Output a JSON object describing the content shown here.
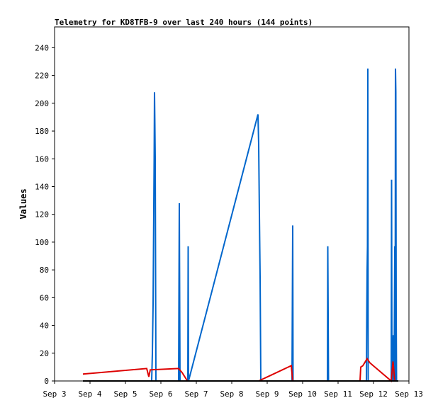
{
  "chart_data": {
    "type": "line",
    "title": "Telemetry for KD8TFB-9 over last 240 hours (144 points)",
    "xlabel": "",
    "ylabel": "Values",
    "x_ticks": [
      "Sep 3",
      "Sep 4",
      "Sep 5",
      "Sep 6",
      "Sep 7",
      "Sep 8",
      "Sep 9",
      "Sep 10",
      "Sep 11",
      "Sep 12",
      "Sep 13"
    ],
    "y_ticks": [
      "0",
      "20",
      "40",
      "60",
      "80",
      "100",
      "120",
      "140",
      "160",
      "180",
      "200",
      "220",
      "240"
    ],
    "xlim": [
      0,
      10
    ],
    "ylim": [
      0,
      255
    ],
    "grid": false,
    "legend": "none",
    "series": [
      {
        "color": "#0066cc",
        "points": [
          [
            0.8,
            0
          ],
          [
            5.74,
            0
          ],
          [
            2.74,
            0
          ],
          [
            2.76,
            20
          ],
          [
            2.78,
            55
          ],
          [
            2.79,
            90
          ],
          [
            2.8,
            125
          ],
          [
            2.81,
            160
          ],
          [
            2.82,
            208
          ],
          [
            2.83,
            185
          ],
          [
            2.84,
            160
          ],
          [
            2.85,
            80
          ],
          [
            2.86,
            0
          ],
          [
            3.5,
            0
          ],
          [
            3.51,
            65
          ],
          [
            3.52,
            128
          ],
          [
            3.53,
            60
          ],
          [
            3.54,
            0
          ],
          [
            3.76,
            0
          ],
          [
            3.77,
            97
          ],
          [
            3.78,
            0
          ],
          [
            5.74,
            192
          ],
          [
            5.76,
            170
          ],
          [
            5.78,
            120
          ],
          [
            5.8,
            75
          ],
          [
            5.82,
            0
          ],
          [
            6.7,
            0
          ],
          [
            6.71,
            56
          ],
          [
            6.72,
            112
          ],
          [
            6.73,
            0
          ],
          [
            7.7,
            0
          ],
          [
            7.71,
            97
          ],
          [
            7.72,
            48
          ],
          [
            7.73,
            0
          ],
          [
            8.8,
            0
          ],
          [
            8.81,
            48
          ],
          [
            8.82,
            80
          ],
          [
            8.83,
            97
          ],
          [
            8.84,
            225
          ],
          [
            8.85,
            0
          ],
          [
            9.5,
            0
          ],
          [
            9.51,
            145
          ],
          [
            9.52,
            15
          ],
          [
            9.54,
            0
          ],
          [
            9.56,
            33
          ],
          [
            9.58,
            0
          ],
          [
            9.6,
            97
          ],
          [
            9.61,
            0
          ],
          [
            9.62,
            225
          ],
          [
            9.63,
            208
          ],
          [
            9.64,
            49
          ],
          [
            9.65,
            0
          ]
        ]
      },
      {
        "color": "#dd0000",
        "points": [
          [
            0.8,
            5
          ],
          [
            2.6,
            9
          ],
          [
            2.66,
            3
          ],
          [
            2.7,
            8
          ],
          [
            3.5,
            9
          ],
          [
            3.6,
            6
          ],
          [
            3.7,
            2
          ],
          [
            3.75,
            0
          ],
          [
            5.76,
            0
          ],
          [
            6.68,
            11
          ],
          [
            6.72,
            0
          ],
          [
            8.62,
            0
          ],
          [
            8.64,
            10
          ],
          [
            8.7,
            11
          ],
          [
            8.82,
            16
          ],
          [
            8.9,
            13
          ],
          [
            9.5,
            0
          ],
          [
            9.55,
            14
          ],
          [
            9.6,
            0
          ]
        ]
      },
      {
        "color": "#000000",
        "points": [
          [
            0.8,
            0
          ],
          [
            9.7,
            0
          ]
        ]
      }
    ]
  }
}
